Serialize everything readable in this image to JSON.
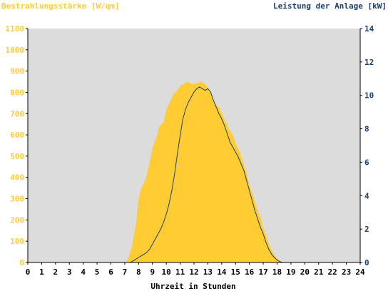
{
  "chart_data": {
    "type": "area",
    "xlabel": "Uhrzeit in Stunden",
    "x_ticks": [
      0,
      1,
      2,
      3,
      4,
      5,
      6,
      7,
      8,
      9,
      10,
      11,
      12,
      13,
      14,
      15,
      16,
      17,
      18,
      19,
      20,
      21,
      22,
      23,
      24
    ],
    "xlim": [
      0,
      24
    ],
    "y_left": {
      "label": "Bestrahlungsstärke [W/qm]",
      "ticks": [
        0,
        100,
        200,
        300,
        400,
        500,
        600,
        700,
        800,
        900,
        1000,
        1100
      ],
      "ylim": [
        0,
        1100
      ]
    },
    "y_right": {
      "label": "Leistung der Anlage [kW]",
      "ticks": [
        0,
        2,
        4,
        6,
        8,
        10,
        12,
        14
      ],
      "ylim": [
        0,
        14
      ]
    },
    "grid": false,
    "colors": {
      "plot_background": "#dcdcdc",
      "irradiance_fill": "#ffcc33",
      "power_line": "#1a3f6e",
      "left_axis_text": "#ffcc33",
      "right_axis_text": "#1a3f6e",
      "axis": "#000000"
    },
    "series": [
      {
        "axis": "left",
        "style": "filled-area",
        "x": [
          0,
          7.0,
          7.2,
          7.5,
          7.8,
          8.0,
          8.2,
          8.5,
          8.8,
          9.0,
          9.3,
          9.5,
          9.8,
          10.0,
          10.3,
          10.5,
          10.8,
          11.0,
          11.3,
          11.5,
          11.8,
          12.0,
          12.3,
          12.5,
          12.8,
          13.0,
          13.3,
          13.5,
          13.8,
          14.0,
          14.3,
          14.5,
          14.8,
          15.0,
          15.3,
          15.5,
          15.8,
          16.0,
          16.3,
          16.5,
          16.8,
          17.0,
          17.3,
          17.5,
          17.8,
          18.0,
          18.2,
          18.5,
          18.7,
          19.0,
          24
        ],
        "values": [
          0,
          0,
          10,
          70,
          180,
          300,
          350,
          390,
          470,
          540,
          590,
          640,
          660,
          720,
          760,
          790,
          810,
          830,
          840,
          850,
          840,
          840,
          845,
          850,
          840,
          820,
          790,
          750,
          730,
          700,
          660,
          630,
          600,
          560,
          520,
          480,
          420,
          360,
          310,
          260,
          210,
          160,
          110,
          70,
          35,
          20,
          8,
          0,
          0,
          0,
          0
        ]
      },
      {
        "axis": "right",
        "style": "line",
        "x": [
          0,
          7.4,
          7.6,
          7.8,
          8.0,
          8.2,
          8.4,
          8.6,
          8.8,
          9.0,
          9.2,
          9.4,
          9.6,
          9.8,
          10.0,
          10.2,
          10.4,
          10.6,
          10.8,
          11.0,
          11.2,
          11.4,
          11.6,
          11.8,
          12.0,
          12.2,
          12.4,
          12.6,
          12.8,
          13.0,
          13.2,
          13.4,
          13.6,
          13.8,
          14.0,
          14.2,
          14.4,
          14.6,
          14.8,
          15.0,
          15.2,
          15.4,
          15.6,
          15.8,
          16.0,
          16.2,
          16.4,
          16.6,
          16.8,
          17.0,
          17.2,
          17.4,
          17.6,
          17.8,
          18.0,
          18.2,
          18.4,
          18.6,
          24
        ],
        "values": [
          0,
          0,
          0.1,
          0.2,
          0.3,
          0.4,
          0.5,
          0.6,
          0.8,
          1.1,
          1.4,
          1.7,
          2.0,
          2.4,
          2.9,
          3.5,
          4.3,
          5.3,
          6.5,
          7.6,
          8.6,
          9.2,
          9.6,
          9.9,
          10.2,
          10.4,
          10.5,
          10.4,
          10.3,
          10.4,
          10.2,
          9.7,
          9.3,
          8.9,
          8.6,
          8.2,
          7.7,
          7.2,
          6.9,
          6.6,
          6.3,
          5.9,
          5.5,
          4.9,
          4.3,
          3.7,
          3.1,
          2.6,
          2.1,
          1.7,
          1.2,
          0.8,
          0.5,
          0.3,
          0.15,
          0.05,
          0,
          0,
          0
        ]
      }
    ]
  }
}
